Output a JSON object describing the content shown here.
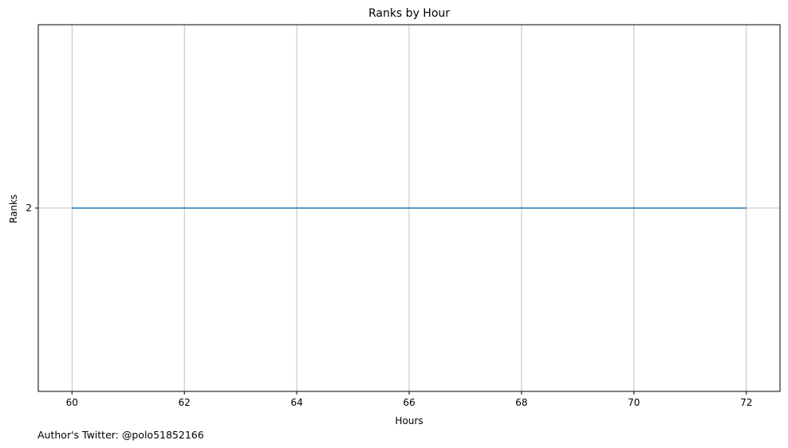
{
  "footer_text": "Author's Twitter: @polo51852166",
  "chart_data": {
    "type": "line",
    "title": "Ranks by Hour",
    "xlabel": "Hours",
    "ylabel": "Ranks",
    "x_ticks": [
      60,
      62,
      64,
      66,
      68,
      70,
      72
    ],
    "y_ticks": [
      2
    ],
    "xlim": [
      59.4,
      72.6
    ],
    "ylim": [
      1.0,
      3.0
    ],
    "grid": true,
    "series": [
      {
        "color": "#1f77b4",
        "x": [
          60,
          72
        ],
        "y": [
          2,
          2
        ]
      }
    ]
  }
}
